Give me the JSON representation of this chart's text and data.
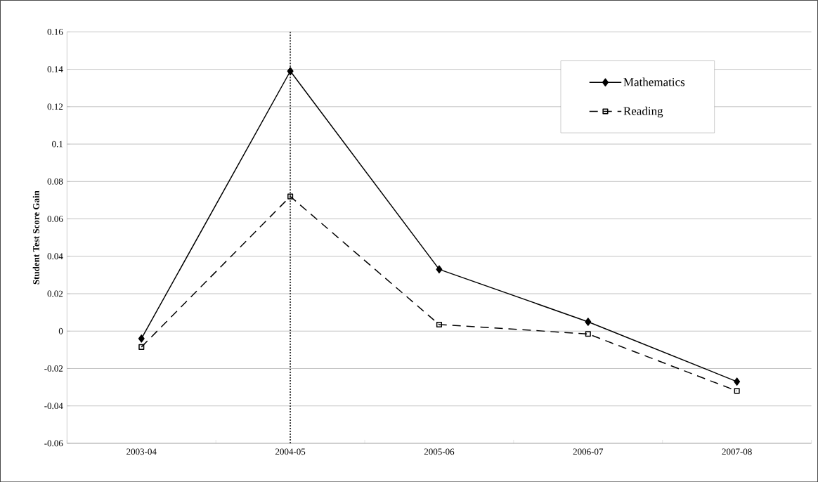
{
  "chart_data": {
    "type": "line",
    "ylabel": "Student Test Score Gain",
    "categories": [
      "2003-04",
      "2004-05",
      "2005-06",
      "2006-07",
      "2007-08"
    ],
    "series": [
      {
        "name": "Mathematics",
        "color": "#000000",
        "marker": "diamond",
        "line_style": "solid",
        "values": [
          -0.004,
          0.139,
          0.033,
          0.005,
          -0.027
        ]
      },
      {
        "name": "Reading",
        "color": "#000000",
        "marker": "square",
        "line_style": "dashed",
        "values": [
          -0.0085,
          0.072,
          0.0035,
          -0.0015,
          -0.032
        ]
      }
    ],
    "ylim": [
      -0.06,
      0.16
    ],
    "yticks": [
      -0.06,
      -0.04,
      -0.02,
      0,
      0.02,
      0.04,
      0.06,
      0.08,
      0.1,
      0.12,
      0.14,
      0.16
    ],
    "grid": "y",
    "legend": "top right",
    "ref_lines": [
      {
        "axis": "x",
        "value": "2004-05",
        "color": "#404040",
        "line_style": "dotted"
      }
    ]
  }
}
